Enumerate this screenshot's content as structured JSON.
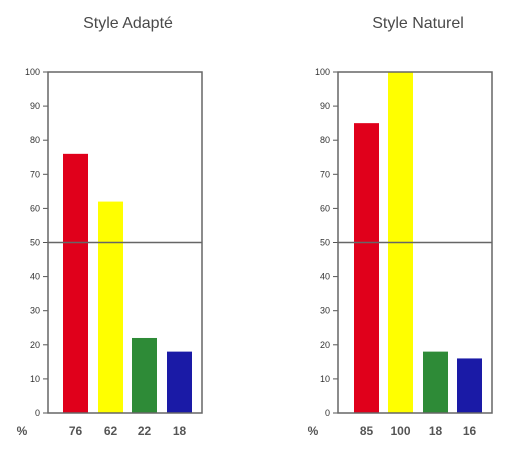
{
  "chart_data": [
    {
      "type": "bar",
      "title": "Style Adapté",
      "ylabel": "%",
      "ylim": [
        0,
        100
      ],
      "yticks": [
        0,
        10,
        20,
        30,
        40,
        50,
        60,
        70,
        80,
        90,
        100
      ],
      "reference_line": 50,
      "categories": [
        "76",
        "62",
        "22",
        "18"
      ],
      "values": [
        76,
        62,
        22,
        18
      ],
      "colors": [
        "#e0001b",
        "#ffff00",
        "#2e8b37",
        "#1a1aa6"
      ]
    },
    {
      "type": "bar",
      "title": "Style Naturel",
      "ylabel": "%",
      "ylim": [
        0,
        100
      ],
      "yticks": [
        0,
        10,
        20,
        30,
        40,
        50,
        60,
        70,
        80,
        90,
        100
      ],
      "reference_line": 50,
      "categories": [
        "85",
        "100",
        "18",
        "16"
      ],
      "values": [
        85,
        100,
        18,
        16
      ],
      "colors": [
        "#e0001b",
        "#ffff00",
        "#2e8b37",
        "#1a1aa6"
      ]
    }
  ]
}
